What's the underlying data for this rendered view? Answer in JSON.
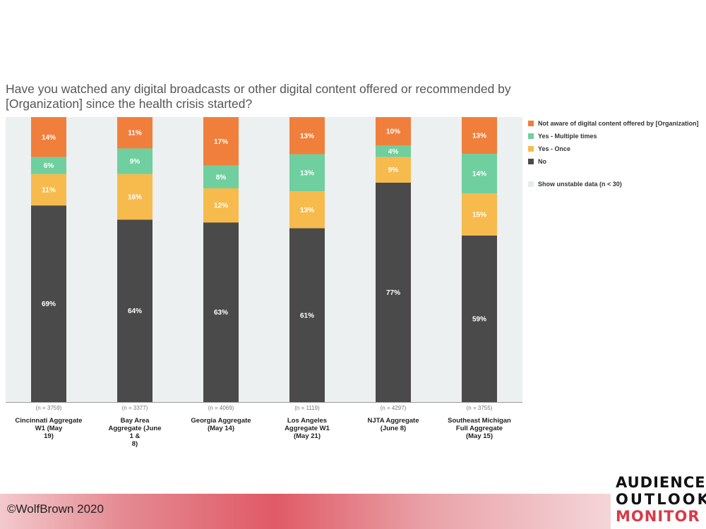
{
  "title": "Have you watched any digital broadcasts or other digital content offered or recommended by [Organization] since the health crisis started?",
  "legend": [
    {
      "name": "Not aware of digital content offered by [Organization]",
      "color": "#f07f3c"
    },
    {
      "name": "Yes - Multiple times",
      "color": "#6fcf9f"
    },
    {
      "name": "Yes - Once",
      "color": "#f7bb4d"
    },
    {
      "name": "No",
      "color": "#4a4a4a"
    }
  ],
  "unstable_toggle_label": "Show unstable data (n < 30)",
  "copyright": "©WolfBrown 2020",
  "logo": {
    "line1": "AUDIENCE",
    "line2": "OUTLOOK",
    "line3": "MONITOR"
  },
  "chart_data": {
    "type": "bar",
    "stacked": true,
    "categories": [
      "Cincinnati Aggregate W1 (May 19)",
      "Bay Area Aggregate (June 1 & 8)",
      "Georgia Aggregate (May 14)",
      "Los Angeles Aggregate W1 (May 21)",
      "NJTA Aggregate (June 8)",
      "Southeast Michigan Full Aggregate (May 15)"
    ],
    "category_label_lines": [
      [
        "Cincinnati Aggregate",
        "W1 (May",
        "19)"
      ],
      [
        "Bay Area",
        "Aggregate (June",
        "1 &",
        "8)"
      ],
      [
        "Georgia Aggregate",
        "(May 14)"
      ],
      [
        "Los Angeles",
        "Aggregate W1",
        "(May 21)"
      ],
      [
        "NJTA Aggregate",
        "(June 8)"
      ],
      [
        "Southeast Michigan",
        "Full Aggregate",
        "(May 15)"
      ]
    ],
    "sample_sizes": [
      "(n = 3759)",
      "(n = 3377)",
      "(n = 4069)",
      "(n = 1119)",
      "(n = 4297)",
      "(n = 3755)"
    ],
    "series": [
      {
        "name": "No",
        "color": "#4a4a4a",
        "values": [
          69,
          64,
          63,
          61,
          77,
          59
        ]
      },
      {
        "name": "Yes - Once",
        "color": "#f7bb4d",
        "values": [
          11,
          16,
          12,
          13,
          9,
          15
        ]
      },
      {
        "name": "Yes - Multiple times",
        "color": "#6fcf9f",
        "values": [
          6,
          9,
          8,
          13,
          4,
          14
        ]
      },
      {
        "name": "Not aware of digital content offered by [Organization]",
        "color": "#f07f3c",
        "values": [
          14,
          11,
          17,
          13,
          10,
          13
        ]
      }
    ],
    "value_suffix": "%",
    "ylim": [
      0,
      100
    ],
    "grid": false
  }
}
